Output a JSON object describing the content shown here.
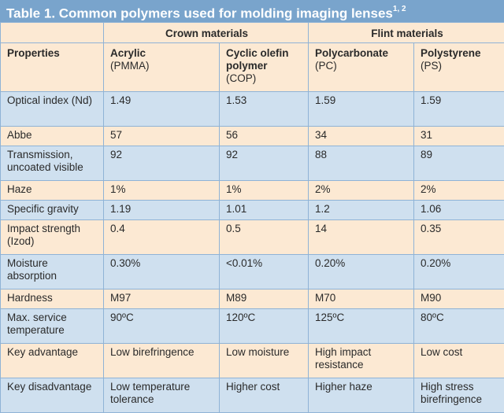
{
  "title": {
    "text": "Table 1. Common polymers used for molding imaging lenses",
    "superscript": "1, 2"
  },
  "groups": {
    "crown": "Crown materials",
    "flint": "Flint materials"
  },
  "columns": [
    {
      "name": "Properties",
      "abbr": ""
    },
    {
      "name": "Acrylic",
      "abbr": "(PMMA)"
    },
    {
      "name": "Cyclic olefin polymer",
      "abbr": "(COP)"
    },
    {
      "name": "Polycarbonate",
      "abbr": "(PC)"
    },
    {
      "name": "Polystyrene",
      "abbr": "(PS)"
    }
  ],
  "rows": [
    {
      "property": "Optical index (Nd)",
      "values": [
        "1.49",
        "1.53",
        "1.59",
        "1.59"
      ]
    },
    {
      "property": "Abbe",
      "values": [
        "57",
        "56",
        "34",
        "31"
      ]
    },
    {
      "property": "Transmission, uncoated visible",
      "values": [
        "92",
        "92",
        "88",
        "89"
      ]
    },
    {
      "property": "Haze",
      "values": [
        "1%",
        "1%",
        "2%",
        "2%"
      ]
    },
    {
      "property": "Specific gravity",
      "values": [
        "1.19",
        "1.01",
        "1.2",
        "1.06"
      ]
    },
    {
      "property": "Impact strength (Izod)",
      "values": [
        "0.4",
        "0.5",
        "14",
        "0.35"
      ]
    },
    {
      "property": "Moisture absorption",
      "values": [
        "0.30%",
        "<0.01%",
        "0.20%",
        "0.20%"
      ]
    },
    {
      "property": "Hardness",
      "values": [
        "M97",
        "M89",
        "M70",
        "M90"
      ]
    },
    {
      "property": "Max. service temperature",
      "values": [
        "90ºC",
        "120ºC",
        "125ºC",
        "80ºC"
      ]
    },
    {
      "property": "Key advantage",
      "values": [
        "Low birefringence",
        "Low moisture",
        "High impact resistance",
        "Low cost"
      ]
    },
    {
      "property": "Key disadvantage",
      "values": [
        "Low temperature tolerance",
        "Higher cost",
        "Higher haze",
        "High stress birefringence"
      ]
    }
  ],
  "colors": {
    "title_bg": "#79a4cc",
    "band_bg": "#cfe0ef",
    "plain_bg": "#fce9d3",
    "rule": "#8fb3d6"
  }
}
